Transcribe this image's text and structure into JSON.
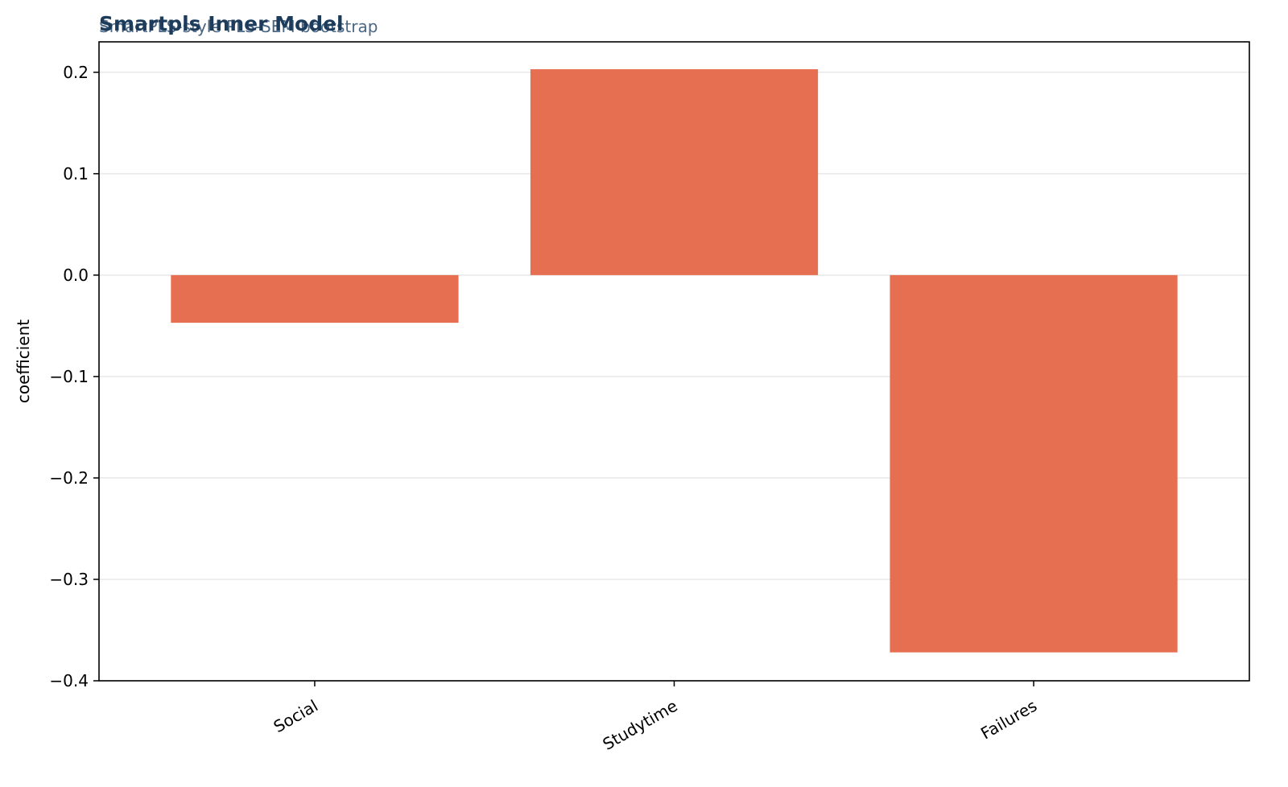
{
  "chart_data": {
    "type": "bar",
    "title": "Smartpls Inner Model",
    "subtitle": "SmartPLS-style PLS-SEM bootstrap",
    "categories": [
      "Social",
      "Studytime",
      "Failures"
    ],
    "values": [
      -0.047,
      0.203,
      -0.372
    ],
    "xlabel": "",
    "ylabel": "coefficient",
    "ylim": [
      -0.4,
      0.23
    ],
    "yticks": [
      0.2,
      0.1,
      0.0,
      -0.1,
      -0.2,
      -0.3,
      -0.4
    ],
    "ytick_labels": [
      "0.2",
      "0.1",
      "0.0",
      "−0.1",
      "−0.2",
      "−0.3",
      "−0.4"
    ],
    "grid": true,
    "legend": "none",
    "colors": {
      "bar": "#e76f51",
      "title": "#1d3b5a",
      "subtitle": "#4a6785",
      "grid": "#e8e8e8",
      "axis": "#000000"
    }
  }
}
